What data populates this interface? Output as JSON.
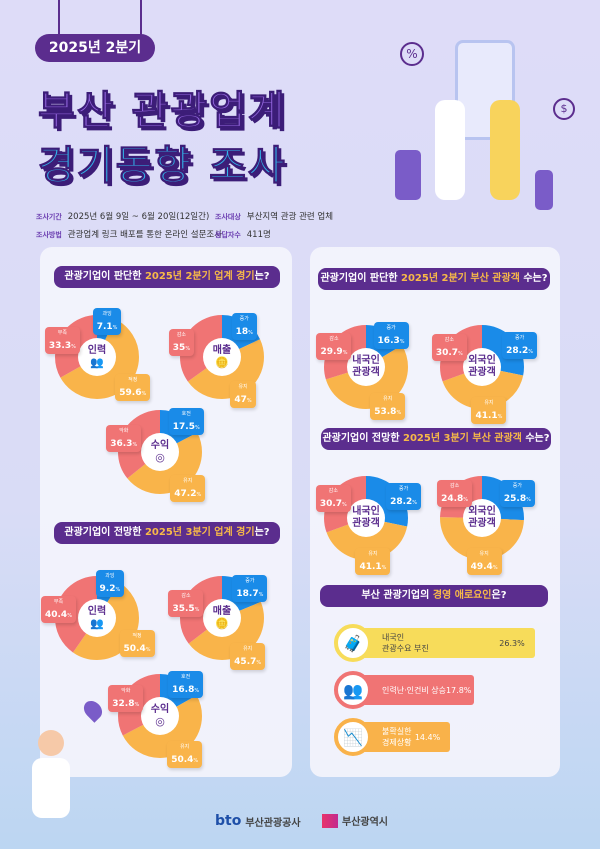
{
  "header": {
    "badge": "2025년 2분기",
    "title_line1": "부산 관광업계",
    "title_line2": "경기동향 조사"
  },
  "info": {
    "period_label": "조사기간",
    "period": "2025년 6월 9일 ~ 6월 20일(12일간)",
    "target_label": "조사대상",
    "target": "부산지역 관광 관련 업체",
    "method_label": "조사방법",
    "method": "관광업계 링크 배포를 통한 온라인 설문조사",
    "respondents_label": "응답자수",
    "respondents": "411명"
  },
  "colors": {
    "blue": "#1a8be8",
    "orange": "#f9b44a",
    "red": "#f07474",
    "purple": "#5b2d8e"
  },
  "sections": {
    "q2_industry": {
      "pre": "관광기업이 판단한 ",
      "hl": "2025년 2분기 업계 경기",
      "post": "는?"
    },
    "q3_industry": {
      "pre": "관광기업이 전망한 ",
      "hl": "2025년 3분기 업계 경기",
      "post": "는?"
    },
    "q2_visitors": {
      "pre": "관광기업이 판단한 ",
      "hl": "2025년 2분기 부산 관광객 ",
      "post": "수는?"
    },
    "q3_visitors": {
      "pre": "관광기업이 전망한 ",
      "hl": "2025년 3분기 부산 관광객 ",
      "post": "수는?"
    },
    "difficulties": {
      "pre": "부산 관광기업의 ",
      "hl": "경영 애로요인",
      "post": "은?"
    }
  },
  "chart_data": [
    {
      "type": "pie",
      "group": "q2_industry",
      "title": "인력",
      "icon": "people-icon",
      "slices": [
        {
          "label": "과잉",
          "value": 7.1,
          "color": "blue"
        },
        {
          "label": "적정",
          "value": 59.6,
          "color": "orange"
        },
        {
          "label": "부족",
          "value": 33.3,
          "color": "red"
        }
      ]
    },
    {
      "type": "pie",
      "group": "q2_industry",
      "title": "매출",
      "icon": "coins-icon",
      "slices": [
        {
          "label": "증가",
          "value": 18,
          "color": "blue"
        },
        {
          "label": "유지",
          "value": 47,
          "color": "orange"
        },
        {
          "label": "감소",
          "value": 35,
          "color": "red"
        }
      ]
    },
    {
      "type": "pie",
      "group": "q2_industry",
      "title": "수익",
      "icon": "target-icon",
      "slices": [
        {
          "label": "호전",
          "value": 17.5,
          "color": "blue"
        },
        {
          "label": "유지",
          "value": 47.2,
          "color": "orange"
        },
        {
          "label": "악화",
          "value": 36.3,
          "color": "red"
        }
      ]
    },
    {
      "type": "pie",
      "group": "q3_industry",
      "title": "인력",
      "icon": "people-icon",
      "slices": [
        {
          "label": "과잉",
          "value": 9.2,
          "color": "blue"
        },
        {
          "label": "적정",
          "value": 50.4,
          "color": "orange"
        },
        {
          "label": "부족",
          "value": 40.4,
          "color": "red"
        }
      ]
    },
    {
      "type": "pie",
      "group": "q3_industry",
      "title": "매출",
      "icon": "coins-icon",
      "slices": [
        {
          "label": "증가",
          "value": 18.7,
          "color": "blue"
        },
        {
          "label": "유지",
          "value": 45.7,
          "color": "orange"
        },
        {
          "label": "감소",
          "value": 35.5,
          "color": "red"
        }
      ]
    },
    {
      "type": "pie",
      "group": "q3_industry",
      "title": "수익",
      "icon": "target-icon",
      "slices": [
        {
          "label": "호전",
          "value": 16.8,
          "color": "blue"
        },
        {
          "label": "유지",
          "value": 50.4,
          "color": "orange"
        },
        {
          "label": "악화",
          "value": 32.8,
          "color": "red"
        }
      ]
    },
    {
      "type": "pie",
      "group": "q2_visitors",
      "title": "내국인\n관광객",
      "slices": [
        {
          "label": "증가",
          "value": 16.3,
          "color": "blue"
        },
        {
          "label": "유지",
          "value": 53.8,
          "color": "orange"
        },
        {
          "label": "감소",
          "value": 29.9,
          "color": "red"
        }
      ]
    },
    {
      "type": "pie",
      "group": "q2_visitors",
      "title": "외국인\n관광객",
      "slices": [
        {
          "label": "증가",
          "value": 28.2,
          "color": "blue"
        },
        {
          "label": "유지",
          "value": 41.1,
          "color": "orange"
        },
        {
          "label": "감소",
          "value": 30.7,
          "color": "red"
        }
      ]
    },
    {
      "type": "pie",
      "group": "q3_visitors",
      "title": "내국인\n관광객",
      "slices": [
        {
          "label": "증가",
          "value": 28.2,
          "color": "blue"
        },
        {
          "label": "유지",
          "value": 41.1,
          "color": "orange"
        },
        {
          "label": "감소",
          "value": 30.7,
          "color": "red"
        }
      ]
    },
    {
      "type": "pie",
      "group": "q3_visitors",
      "title": "외국인\n관광객",
      "slices": [
        {
          "label": "증가",
          "value": 25.8,
          "color": "blue"
        },
        {
          "label": "유지",
          "value": 49.4,
          "color": "orange"
        },
        {
          "label": "감소",
          "value": 24.8,
          "color": "red"
        }
      ]
    },
    {
      "type": "bar",
      "group": "difficulties",
      "categories": [
        "내국인\n관광수요 부진",
        "인력난·인건비 상승",
        "불확실한\n경제상황"
      ],
      "values": [
        26.3,
        17.8,
        14.4
      ],
      "labels": [
        "26.3%",
        "17.8%",
        "14.4%"
      ],
      "colors": [
        "#f7dc5a",
        "#f07474",
        "#f9b24a"
      ]
    }
  ],
  "footer": {
    "logo1_mark": "bto",
    "logo1": "부산관광공사",
    "logo2": "부산광역시"
  }
}
